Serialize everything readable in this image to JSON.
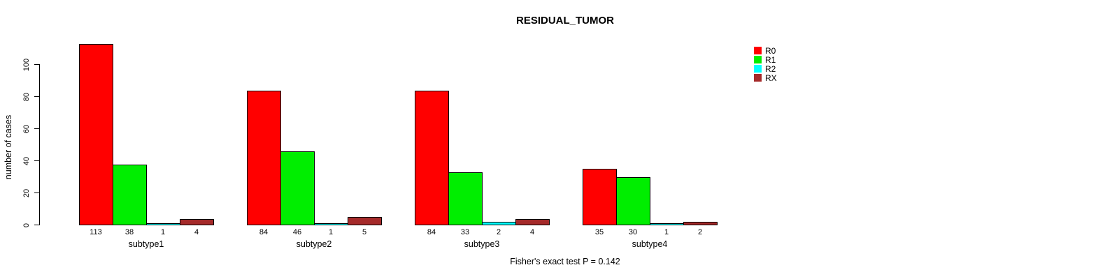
{
  "chart_data": {
    "type": "bar",
    "title": "RESIDUAL_TUMOR",
    "ylabel": "number of cases",
    "xlabel": "",
    "footer": "Fisher's exact test P = 0.142",
    "categories": [
      "subtype1",
      "subtype2",
      "subtype3",
      "subtype4"
    ],
    "series": [
      {
        "name": "R0",
        "color": "#ff0000",
        "values": [
          113,
          84,
          84,
          35
        ]
      },
      {
        "name": "R1",
        "color": "#00ee00",
        "values": [
          38,
          46,
          33,
          30
        ]
      },
      {
        "name": "R2",
        "color": "#00ffff",
        "values": [
          1,
          1,
          2,
          1
        ]
      },
      {
        "name": "RX",
        "color": "#a52a2a",
        "values": [
          4,
          5,
          4,
          2
        ]
      }
    ],
    "bar_value_labels": [
      [
        113,
        38,
        1,
        4
      ],
      [
        84,
        46,
        1,
        5
      ],
      [
        84,
        33,
        2,
        4
      ],
      [
        35,
        30,
        1,
        2
      ]
    ],
    "yticks": [
      0,
      20,
      40,
      60,
      80,
      100
    ],
    "ylim": [
      0,
      100
    ],
    "grid": false,
    "legend_position": "top-right",
    "legend_entries": [
      "R0",
      "R1",
      "R2",
      "RX"
    ],
    "bar_outline_color": "#000000",
    "text_color": "#000000",
    "background_color": "#ffffff"
  }
}
